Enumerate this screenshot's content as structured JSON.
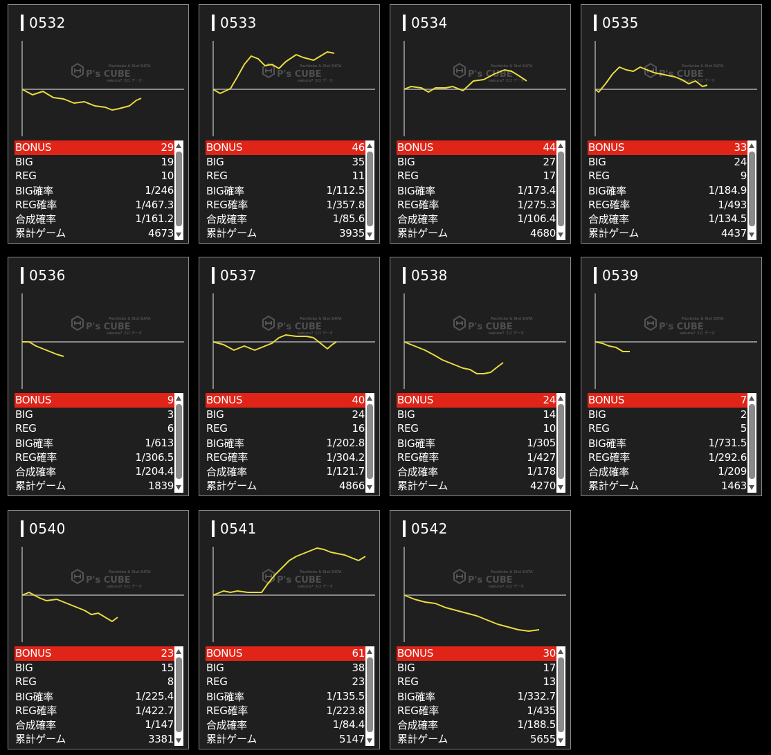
{
  "labels": {
    "bonus": "BONUS",
    "big": "BIG",
    "reg": "REG",
    "big_rate": "BIG確率",
    "reg_rate": "REG確率",
    "total_rate": "合成確率",
    "games": "累計ゲーム"
  },
  "watermark": {
    "brand": "P's CUBE",
    "tagline_top": "Pachinko & Slot DATA",
    "tagline_bottom": "sakura7 スロ データ"
  },
  "colors": {
    "accent_red": "#e02418",
    "graph_line": "#e8dc40",
    "card_bg": "#1f1f1f"
  },
  "machines": [
    {
      "id": "0532",
      "bonus": "29",
      "big": "19",
      "reg": "10",
      "big_rate": "1/246",
      "reg_rate": "1/467.3",
      "total_rate": "1/161.2",
      "games": "4673"
    },
    {
      "id": "0533",
      "bonus": "46",
      "big": "35",
      "reg": "11",
      "big_rate": "1/112.5",
      "reg_rate": "1/357.8",
      "total_rate": "1/85.6",
      "games": "3935"
    },
    {
      "id": "0534",
      "bonus": "44",
      "big": "27",
      "reg": "17",
      "big_rate": "1/173.4",
      "reg_rate": "1/275.3",
      "total_rate": "1/106.4",
      "games": "4680"
    },
    {
      "id": "0535",
      "bonus": "33",
      "big": "24",
      "reg": "9",
      "big_rate": "1/184.9",
      "reg_rate": "1/493",
      "total_rate": "1/134.5",
      "games": "4437"
    },
    {
      "id": "0536",
      "bonus": "9",
      "big": "3",
      "reg": "6",
      "big_rate": "1/613",
      "reg_rate": "1/306.5",
      "total_rate": "1/204.4",
      "games": "1839"
    },
    {
      "id": "0537",
      "bonus": "40",
      "big": "24",
      "reg": "16",
      "big_rate": "1/202.8",
      "reg_rate": "1/304.2",
      "total_rate": "1/121.7",
      "games": "4866"
    },
    {
      "id": "0538",
      "bonus": "24",
      "big": "14",
      "reg": "10",
      "big_rate": "1/305",
      "reg_rate": "1/427",
      "total_rate": "1/178",
      "games": "4270"
    },
    {
      "id": "0539",
      "bonus": "7",
      "big": "2",
      "reg": "5",
      "big_rate": "1/731.5",
      "reg_rate": "1/292.6",
      "total_rate": "1/209",
      "games": "1463"
    },
    {
      "id": "0540",
      "bonus": "23",
      "big": "15",
      "reg": "8",
      "big_rate": "1/225.4",
      "reg_rate": "1/422.7",
      "total_rate": "1/147",
      "games": "3381"
    },
    {
      "id": "0541",
      "bonus": "61",
      "big": "38",
      "reg": "23",
      "big_rate": "1/135.5",
      "reg_rate": "1/223.8",
      "total_rate": "1/84.4",
      "games": "5147"
    },
    {
      "id": "0542",
      "bonus": "30",
      "big": "17",
      "reg": "13",
      "big_rate": "1/332.7",
      "reg_rate": "1/435",
      "total_rate": "1/188.5",
      "games": "5655"
    }
  ]
}
